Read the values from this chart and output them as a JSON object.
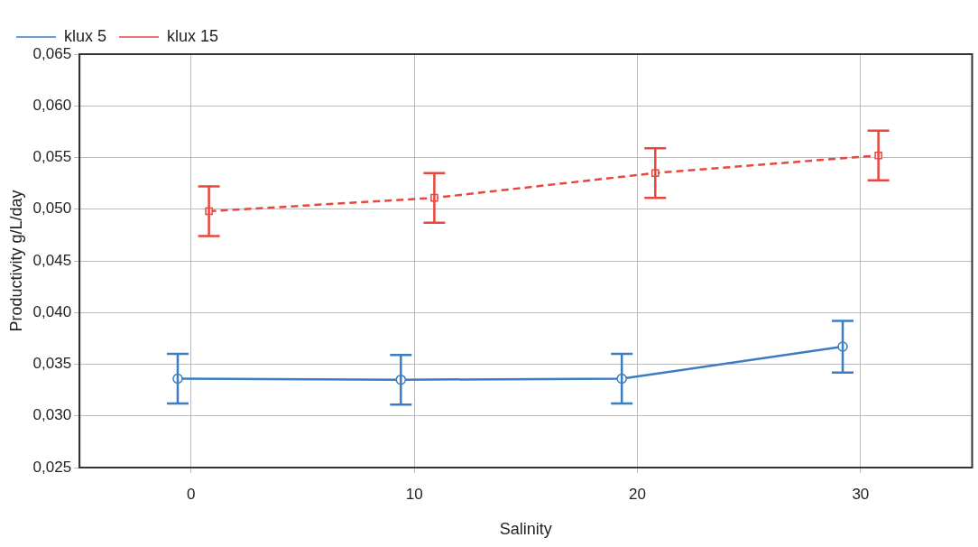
{
  "chart_data": {
    "type": "line",
    "xlabel": "Salinity",
    "ylabel": "Productivity g/L/day",
    "xlim": [
      -5,
      35
    ],
    "xticks": [
      0,
      10,
      20,
      30
    ],
    "ylim": [
      0.025,
      0.065
    ],
    "yticks": [
      {
        "value": 0.025,
        "label": "0,025"
      },
      {
        "value": 0.03,
        "label": "0,030"
      },
      {
        "value": 0.035,
        "label": "0,035"
      },
      {
        "value": 0.04,
        "label": "0,040"
      },
      {
        "value": 0.045,
        "label": "0,045"
      },
      {
        "value": 0.05,
        "label": "0,050"
      },
      {
        "value": 0.055,
        "label": "0,055"
      },
      {
        "value": 0.06,
        "label": "0,060"
      },
      {
        "value": 0.065,
        "label": "0,065"
      }
    ],
    "grid": true,
    "legend": "top left",
    "series": [
      {
        "name": "klux 5",
        "color": "#3a7dc0",
        "marker": "circle",
        "line_style": "solid",
        "x": [
          -0.6,
          9.4,
          19.3,
          29.2
        ],
        "values": [
          0.0336,
          0.0335,
          0.0336,
          0.0367
        ],
        "errors": [
          0.0024,
          0.0024,
          0.0024,
          0.0025
        ]
      },
      {
        "name": "klux 15",
        "color": "#e8473c",
        "marker": "square",
        "line_style": "dashed",
        "x": [
          0.8,
          10.9,
          20.8,
          30.8
        ],
        "values": [
          0.0498,
          0.0511,
          0.0535,
          0.0552
        ],
        "errors": [
          0.0024,
          0.0024,
          0.0024,
          0.0024
        ]
      }
    ]
  }
}
